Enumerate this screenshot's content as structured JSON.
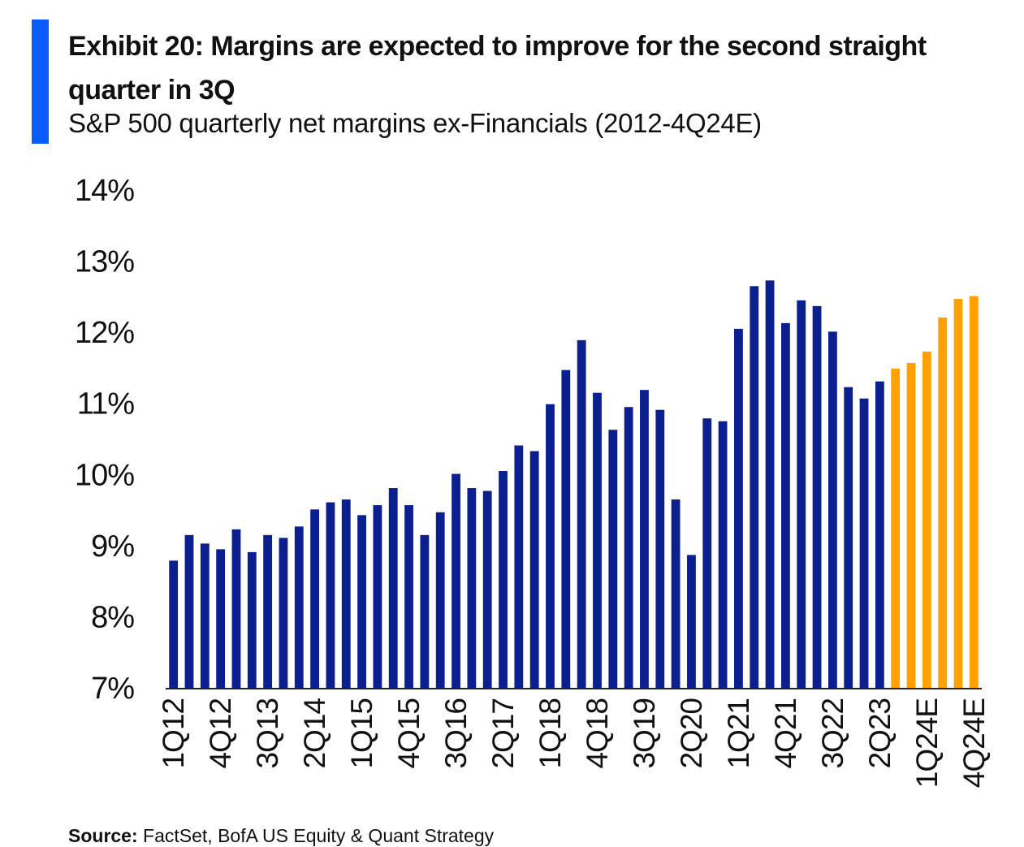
{
  "header": {
    "title": "Exhibit 20: Margins are expected to improve for the second straight quarter in 3Q",
    "subtitle": "S&P 500 quarterly net margins ex-Financials (2012-4Q24E)"
  },
  "footer": {
    "source_label": "Source:",
    "source_text": "FactSet, BofA US Equity & Quant Strategy"
  },
  "colors": {
    "accent": "#0a5cff",
    "actual_bar": "#0b1f8f",
    "estimate_bar": "#ffa100",
    "axis": "#222222"
  },
  "chart_data": {
    "type": "bar",
    "title": "",
    "xlabel": "",
    "ylabel": "",
    "ylim": [
      7,
      14
    ],
    "y_ticks": [
      "7%",
      "8%",
      "9%",
      "10%",
      "11%",
      "12%",
      "13%",
      "14%"
    ],
    "grid": false,
    "categories": [
      "1Q12",
      "2Q12",
      "3Q12",
      "4Q12",
      "1Q13",
      "2Q13",
      "3Q13",
      "4Q13",
      "1Q14",
      "2Q14",
      "3Q14",
      "4Q14",
      "1Q15",
      "2Q15",
      "3Q15",
      "4Q15",
      "1Q16",
      "2Q16",
      "3Q16",
      "4Q16",
      "1Q17",
      "2Q17",
      "3Q17",
      "4Q17",
      "1Q18",
      "2Q18",
      "3Q18",
      "4Q18",
      "1Q19",
      "2Q19",
      "3Q19",
      "4Q19",
      "1Q20",
      "2Q20",
      "3Q20",
      "4Q20",
      "1Q21",
      "2Q21",
      "3Q21",
      "4Q21",
      "1Q22",
      "2Q22",
      "3Q22",
      "4Q22",
      "1Q23",
      "2Q23",
      "3Q23",
      "4Q23",
      "1Q24E",
      "2Q24E",
      "3Q24E",
      "4Q24E"
    ],
    "x_tick_labels": [
      "1Q12",
      "4Q12",
      "3Q13",
      "2Q14",
      "1Q15",
      "4Q15",
      "3Q16",
      "2Q17",
      "1Q18",
      "4Q18",
      "3Q19",
      "2Q20",
      "1Q21",
      "4Q21",
      "3Q22",
      "2Q23",
      "1Q24E",
      "4Q24E"
    ],
    "series": [
      {
        "kind": "actual",
        "values": [
          8.8,
          9.16,
          9.04,
          8.96,
          9.24,
          8.92,
          9.16,
          9.12,
          9.28,
          9.52,
          9.62,
          9.66,
          9.44,
          9.58,
          9.82,
          9.58,
          9.16,
          9.48,
          10.02,
          9.82,
          9.78,
          10.06,
          10.42,
          10.34,
          11.0,
          11.48,
          11.9,
          11.16,
          10.64,
          10.96,
          11.2,
          10.92,
          9.66,
          8.88,
          10.8,
          10.76,
          12.06,
          12.66,
          12.74,
          12.14,
          12.46,
          12.38,
          12.02,
          11.24,
          11.08,
          11.32,
          null,
          null,
          null,
          null,
          null,
          null
        ]
      },
      {
        "kind": "estimate",
        "values": [
          null,
          null,
          null,
          null,
          null,
          null,
          null,
          null,
          null,
          null,
          null,
          null,
          null,
          null,
          null,
          null,
          null,
          null,
          null,
          null,
          null,
          null,
          null,
          null,
          null,
          null,
          null,
          null,
          null,
          null,
          null,
          null,
          null,
          null,
          null,
          null,
          null,
          null,
          null,
          null,
          null,
          null,
          null,
          null,
          null,
          null,
          11.5,
          11.58,
          11.74,
          12.22,
          12.48,
          12.52
        ]
      }
    ]
  }
}
